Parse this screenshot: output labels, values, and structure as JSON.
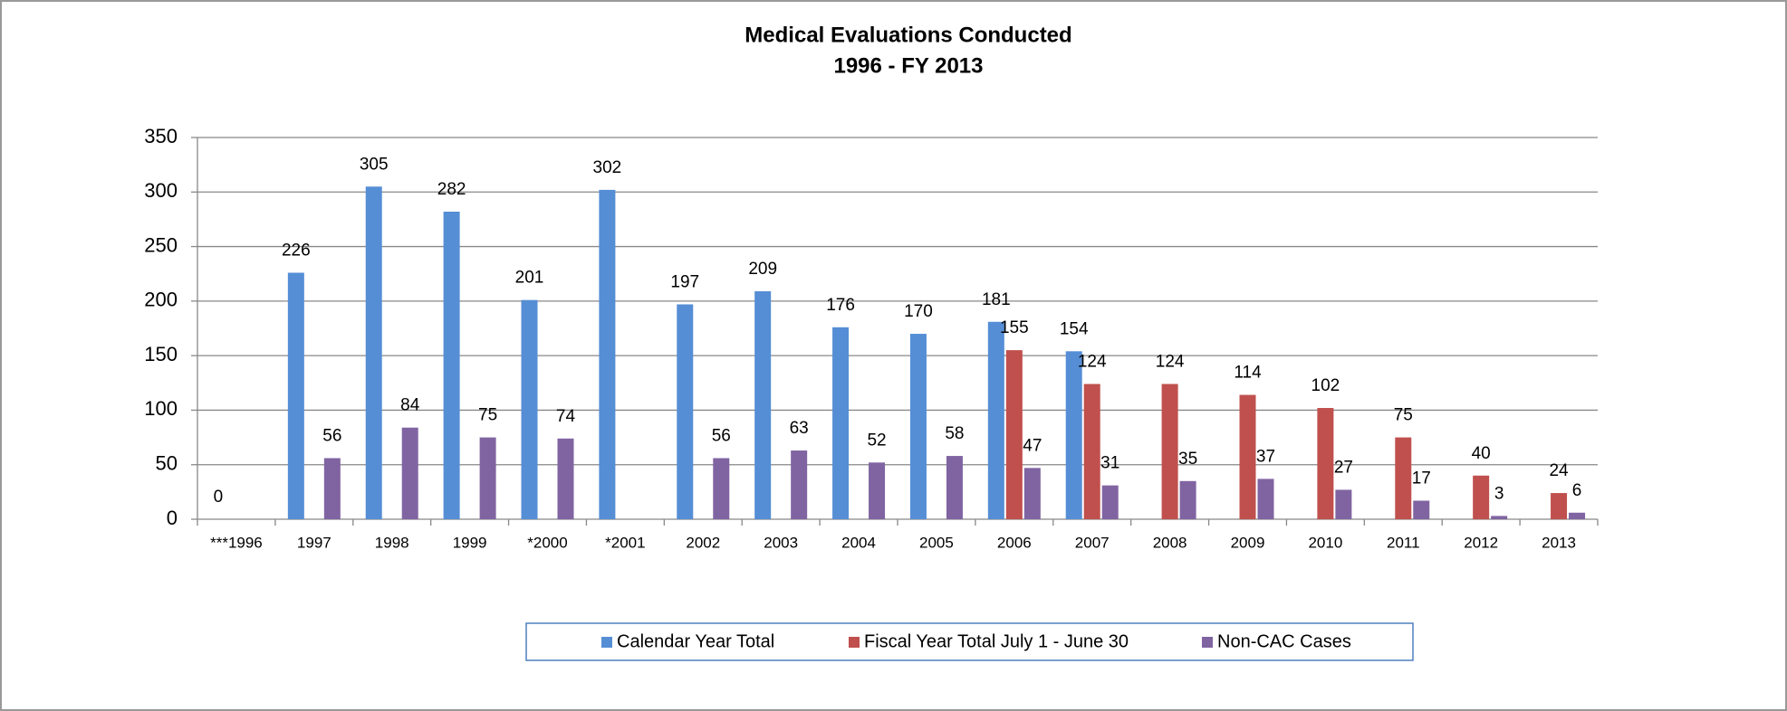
{
  "chart_data": {
    "type": "bar",
    "title": "Medical Evaluations Conducted",
    "subtitle": "1996 - FY 2013",
    "categories": [
      "***1996",
      "1997",
      "1998",
      "1999",
      "*2000",
      "*2001",
      "2002",
      "2003",
      "2004",
      "2005",
      "2006",
      "2007",
      "2008",
      "2009",
      "2010",
      "2011",
      "2012",
      "2013"
    ],
    "series": [
      {
        "name": "Calendar Year Total",
        "color": "#558ed5",
        "values": [
          0,
          226,
          305,
          282,
          201,
          302,
          197,
          209,
          176,
          170,
          181,
          154,
          null,
          null,
          null,
          null,
          null,
          null
        ]
      },
      {
        "name": "Fiscal Year Total July 1 - June 30",
        "color": "#c0504d",
        "values": [
          null,
          null,
          null,
          null,
          null,
          null,
          null,
          null,
          null,
          null,
          155,
          124,
          124,
          114,
          102,
          75,
          40,
          24
        ]
      },
      {
        "name": "Non-CAC Cases",
        "color": "#8064a2",
        "values": [
          null,
          56,
          84,
          75,
          74,
          null,
          56,
          63,
          52,
          58,
          47,
          31,
          35,
          37,
          27,
          17,
          3,
          6
        ]
      }
    ],
    "ylim": [
      0,
      350
    ],
    "yticks": [
      0,
      50,
      100,
      150,
      200,
      250,
      300,
      350
    ],
    "grid": true,
    "legend": "bottom"
  }
}
